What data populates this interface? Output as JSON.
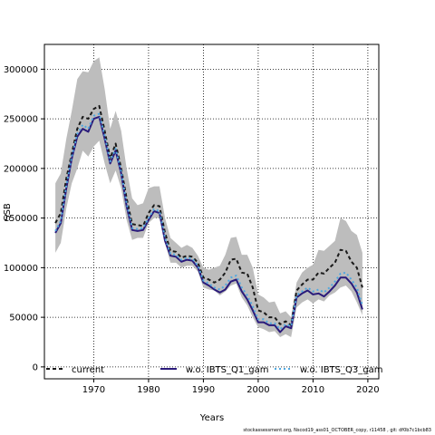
{
  "chart_data": {
    "type": "line",
    "xlabel": "Years",
    "ylabel": "SSB",
    "xlim": [
      1961,
      2022
    ],
    "ylim": [
      -12000,
      325000
    ],
    "xticks": [
      1970,
      1980,
      1990,
      2000,
      2010,
      2020
    ],
    "yticks": [
      0,
      50000,
      100000,
      150000,
      200000,
      250000,
      300000
    ],
    "grid": true,
    "legend_position": "bottom",
    "x": [
      1963,
      1964,
      1965,
      1966,
      1967,
      1968,
      1969,
      1970,
      1971,
      1972,
      1973,
      1974,
      1975,
      1976,
      1977,
      1978,
      1979,
      1980,
      1981,
      1982,
      1983,
      1984,
      1985,
      1986,
      1987,
      1988,
      1989,
      1990,
      1991,
      1992,
      1993,
      1994,
      1995,
      1996,
      1997,
      1998,
      1999,
      2000,
      2001,
      2002,
      2003,
      2004,
      2005,
      2006,
      2007,
      2008,
      2009,
      2010,
      2011,
      2012,
      2013,
      2014,
      2015,
      2016,
      2017,
      2018,
      2019
    ],
    "band": {
      "upper": [
        185000,
        195000,
        230000,
        258000,
        290000,
        298000,
        297000,
        308000,
        312000,
        280000,
        240000,
        258000,
        238000,
        200000,
        170000,
        163000,
        165000,
        180000,
        182000,
        182000,
        150000,
        130000,
        125000,
        120000,
        123000,
        120000,
        112000,
        100000,
        98000,
        100000,
        102000,
        113000,
        130000,
        131000,
        113000,
        113000,
        100000,
        73000,
        70000,
        65000,
        66000,
        54000,
        56000,
        50000,
        85000,
        95000,
        100000,
        103000,
        118000,
        117000,
        122000,
        127000,
        150000,
        147000,
        137000,
        133000,
        115000
      ],
      "lower": [
        115000,
        125000,
        160000,
        185000,
        200000,
        218000,
        212000,
        222000,
        228000,
        205000,
        185000,
        198000,
        180000,
        148000,
        128000,
        130000,
        130000,
        145000,
        150000,
        150000,
        125000,
        105000,
        105000,
        100000,
        102000,
        102000,
        96000,
        80000,
        78000,
        77000,
        72000,
        76000,
        82000,
        84000,
        70000,
        62000,
        50000,
        40000,
        38000,
        35000,
        36000,
        30000,
        33000,
        30000,
        60000,
        65000,
        68000,
        64000,
        68000,
        66000,
        72000,
        75000,
        80000,
        82000,
        76000,
        65000,
        52000
      ]
    },
    "series": [
      {
        "name": "current",
        "color": "#1a1a1a",
        "dash": "4,3",
        "width": 2,
        "values": [
          145000,
          155000,
          190000,
          215000,
          240000,
          252000,
          250000,
          260000,
          263000,
          238000,
          210000,
          225000,
          200000,
          170000,
          144000,
          143000,
          142000,
          155000,
          163000,
          162000,
          135000,
          117000,
          116000,
          110000,
          112000,
          111000,
          105000,
          90000,
          88000,
          85000,
          88000,
          95000,
          108000,
          109000,
          95000,
          94000,
          80000,
          57000,
          55000,
          50000,
          50000,
          43000,
          46000,
          42000,
          77000,
          83000,
          88000,
          88000,
          95000,
          94000,
          100000,
          105000,
          118000,
          117000,
          106000,
          100000,
          80000
        ]
      },
      {
        "name": "w.o. IBTS_Q1_gam",
        "color": "#2a1a7a",
        "dash": "",
        "width": 2,
        "values": [
          135000,
          145000,
          180000,
          210000,
          232000,
          240000,
          237000,
          250000,
          252000,
          230000,
          205000,
          218000,
          195000,
          162000,
          138000,
          137000,
          138000,
          148000,
          157000,
          155000,
          127000,
          112000,
          111000,
          106000,
          108000,
          107000,
          100000,
          85000,
          82000,
          78000,
          75000,
          78000,
          86000,
          88000,
          76000,
          68000,
          57000,
          45000,
          45000,
          42000,
          42000,
          35000,
          41000,
          39000,
          70000,
          74000,
          77000,
          73000,
          74000,
          71000,
          76000,
          82000,
          90000,
          90000,
          84000,
          75000,
          58000
        ]
      },
      {
        "name": "w.o. IBTS_Q3_gam",
        "color": "#4fa8e0",
        "dash": "2,3",
        "width": 2,
        "values": [
          137000,
          147000,
          183000,
          212000,
          235000,
          244000,
          240000,
          253000,
          255000,
          233000,
          207000,
          220000,
          197000,
          165000,
          140000,
          139000,
          140000,
          150000,
          159000,
          157000,
          130000,
          114000,
          113000,
          108000,
          110000,
          109000,
          102000,
          87000,
          84000,
          80000,
          78000,
          82000,
          90000,
          92000,
          80000,
          72000,
          61000,
          48000,
          48000,
          44000,
          44000,
          38000,
          43000,
          41000,
          72000,
          76000,
          80000,
          76000,
          78000,
          75000,
          80000,
          86000,
          94000,
          95000,
          88000,
          80000,
          62000
        ]
      }
    ]
  },
  "footer_text": "stockassessment.org, Nscod19_ass01_OCTOBER_copy, r11458 , git: df0b7c1bcb83"
}
